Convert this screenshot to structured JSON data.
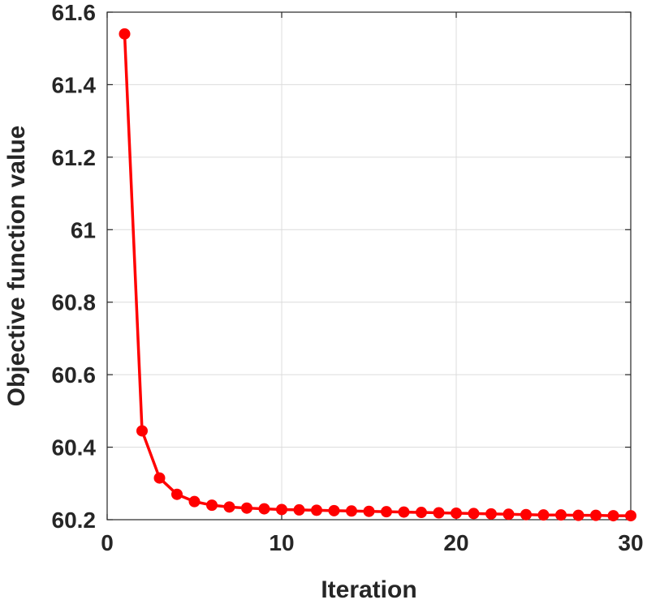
{
  "chart_data": {
    "type": "line",
    "title": "",
    "xlabel": "Iteration",
    "ylabel": "Objective function value",
    "xlim": [
      0,
      30
    ],
    "ylim": [
      60.2,
      61.6
    ],
    "xticks": [
      "0",
      "10",
      "20",
      "30"
    ],
    "yticks": [
      "60.2",
      "60.4",
      "60.6",
      "60.8",
      "61",
      "61.2",
      "61.4",
      "61.6"
    ],
    "grid": true,
    "legend": "none",
    "series": [
      {
        "color": "#ff0000",
        "marker": "circle",
        "x": [
          1,
          2,
          3,
          4,
          5,
          6,
          7,
          8,
          9,
          10,
          11,
          12,
          13,
          14,
          15,
          16,
          17,
          18,
          19,
          20,
          21,
          22,
          23,
          24,
          25,
          26,
          27,
          28,
          29,
          30
        ],
        "y": [
          61.54,
          60.445,
          60.315,
          60.27,
          60.25,
          60.24,
          60.235,
          60.232,
          60.23,
          60.228,
          60.227,
          60.226,
          60.225,
          60.224,
          60.223,
          60.222,
          60.221,
          60.22,
          60.219,
          60.218,
          60.217,
          60.216,
          60.215,
          60.214,
          60.213,
          60.213,
          60.212,
          60.212,
          60.211,
          60.211
        ]
      }
    ]
  }
}
